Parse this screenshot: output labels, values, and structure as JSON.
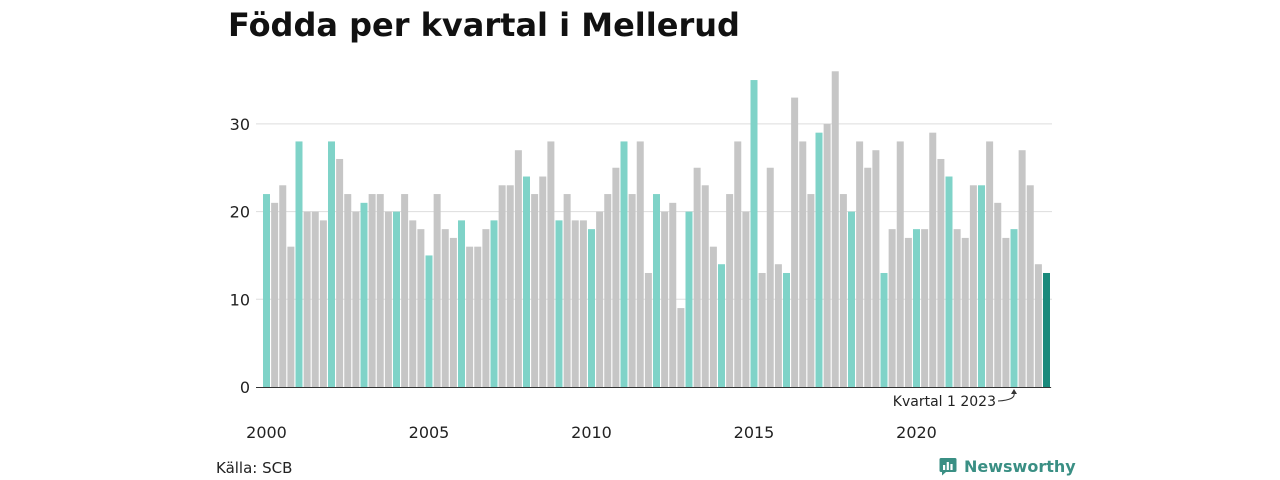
{
  "chart_data": {
    "type": "bar",
    "title": "Födda per kvartal i Mellerud",
    "xlabel": "",
    "ylabel": "",
    "ylim": [
      0,
      37
    ],
    "y_ticks": [
      0,
      10,
      20,
      30
    ],
    "x_ticks": [
      "2000",
      "2005",
      "2010",
      "2015",
      "2020"
    ],
    "start": "2000 Q1",
    "values": [
      22,
      21,
      23,
      16,
      28,
      20,
      20,
      19,
      28,
      26,
      22,
      20,
      21,
      22,
      22,
      20,
      20,
      22,
      19,
      18,
      15,
      22,
      18,
      17,
      19,
      16,
      16,
      18,
      19,
      23,
      23,
      27,
      24,
      22,
      24,
      28,
      19,
      22,
      19,
      19,
      18,
      20,
      22,
      25,
      28,
      22,
      28,
      13,
      22,
      20,
      21,
      9,
      20,
      25,
      23,
      16,
      14,
      22,
      28,
      20,
      35,
      13,
      25,
      14,
      13,
      33,
      28,
      22,
      29,
      30,
      36,
      22,
      20,
      28,
      25,
      27,
      13,
      18,
      28,
      17,
      18,
      18,
      29,
      26,
      24,
      18,
      17,
      23,
      23,
      28,
      21,
      17,
      18,
      27,
      23,
      14,
      13
    ],
    "annotation": "Kvartal 1 2023",
    "grid": true,
    "colors": {
      "q1": "#7fd3c8",
      "other": "#c6c6c6",
      "latest": "#1a8a7c",
      "grid": "#dddddd",
      "axis": "#333333"
    }
  },
  "footer": {
    "source": "Källa: SCB",
    "brand": "Newsworthy"
  }
}
